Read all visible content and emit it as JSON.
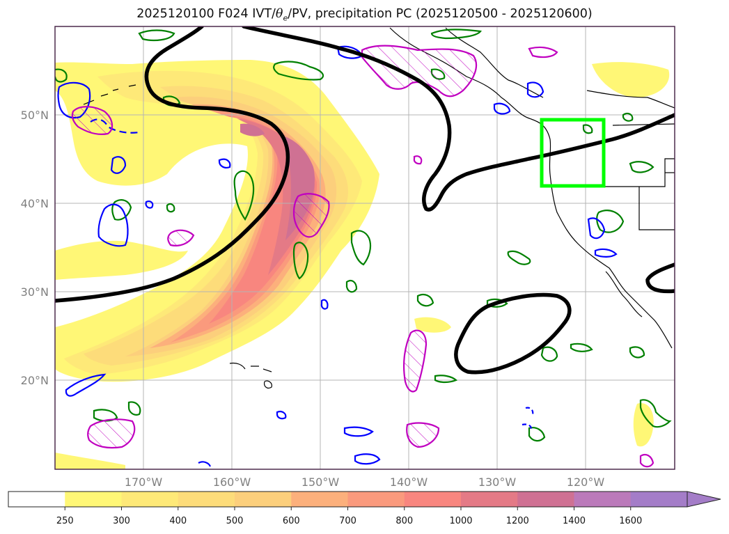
{
  "title": {
    "prefix": "2025120100 F024 IVT/",
    "symbol": "θ",
    "subscript": "e",
    "suffix": "/PV, precipitation PC (2025120500 - 2025120600)"
  },
  "axes": {
    "latitude_labels": [
      "20°N",
      "30°N",
      "40°N",
      "50°N"
    ],
    "longitude_labels": [
      "170°W",
      "160°W",
      "150°W",
      "140°W",
      "130°W",
      "120°W"
    ],
    "lon_range": [
      -180,
      -110
    ],
    "lat_range": [
      10,
      60
    ],
    "grid": true
  },
  "colorbar": {
    "tick_labels": [
      "250",
      "300",
      "400",
      "500",
      "600",
      "700",
      "800",
      "1000",
      "1200",
      "1400",
      "1600"
    ],
    "extend": "max",
    "colors": [
      "#ffffff",
      "#fff776",
      "#fee978",
      "#fddc7a",
      "#fccf7c",
      "#fcb07c",
      "#fa9a7d",
      "#f8867f",
      "#e47a86",
      "#cf7193",
      "#bb7aba",
      "#a47dc8"
    ]
  },
  "overlays": {
    "highlight_box": {
      "lon": [
        -125,
        -118
      ],
      "lat": [
        42,
        49
      ],
      "color": "#00ff00"
    },
    "contour_colors": {
      "green": "#008000",
      "blue": "#0000ff",
      "magenta": "#c000c0",
      "black": "#000000"
    }
  }
}
